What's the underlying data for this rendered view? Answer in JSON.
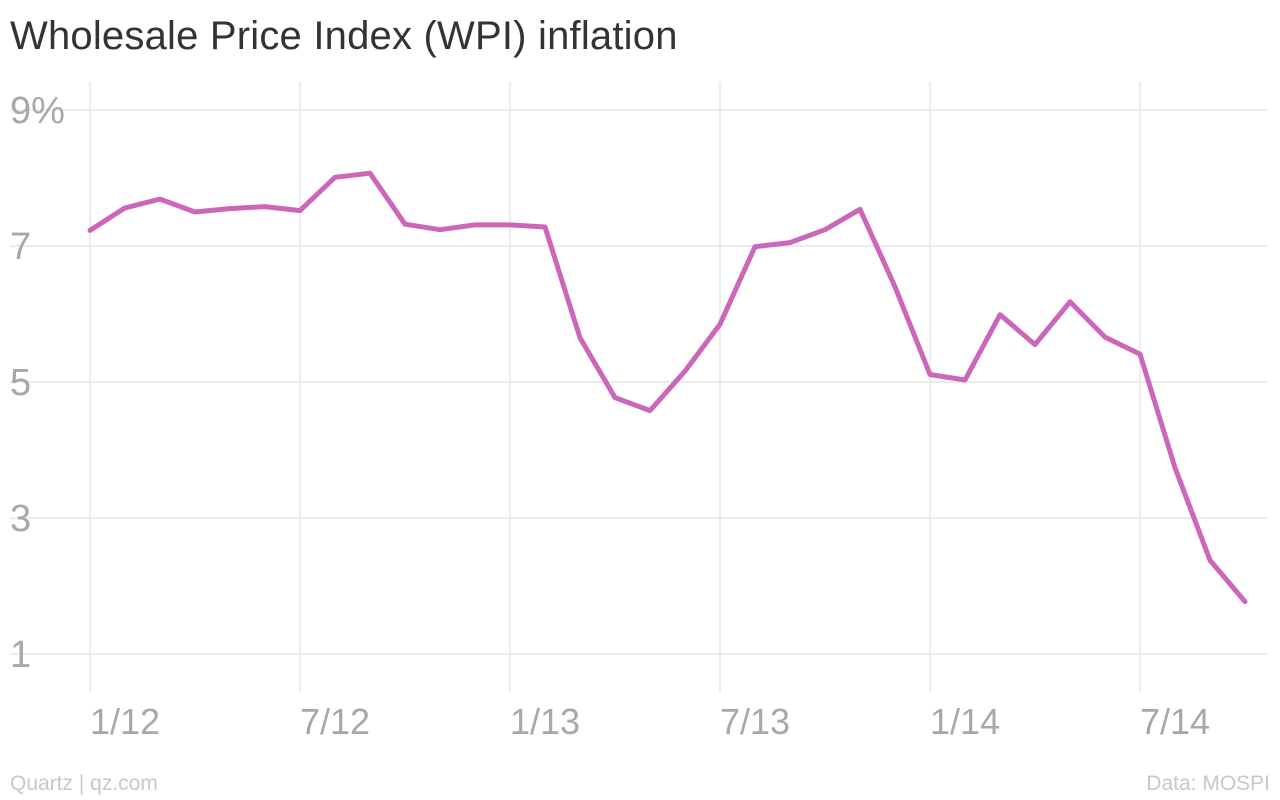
{
  "chart_data": {
    "type": "line",
    "title": "Wholesale Price Index (WPI) inflation",
    "xlabel": "",
    "ylabel": "",
    "ylim": [
      1,
      9
    ],
    "y_ticks": [
      {
        "value": 9,
        "label": "9%"
      },
      {
        "value": 7,
        "label": "7"
      },
      {
        "value": 5,
        "label": "5"
      },
      {
        "value": 3,
        "label": "3"
      },
      {
        "value": 1,
        "label": "1"
      }
    ],
    "x_ticks": [
      {
        "value": "2012-01",
        "label": "1/12"
      },
      {
        "value": "2012-07",
        "label": "7/12"
      },
      {
        "value": "2013-01",
        "label": "1/13"
      },
      {
        "value": "2013-07",
        "label": "7/13"
      },
      {
        "value": "2014-01",
        "label": "1/14"
      },
      {
        "value": "2014-07",
        "label": "7/14"
      }
    ],
    "x": [
      "2012-01",
      "2012-02",
      "2012-03",
      "2012-04",
      "2012-05",
      "2012-06",
      "2012-07",
      "2012-08",
      "2012-09",
      "2012-10",
      "2012-11",
      "2012-12",
      "2013-01",
      "2013-02",
      "2013-03",
      "2013-04",
      "2013-05",
      "2013-06",
      "2013-07",
      "2013-08",
      "2013-09",
      "2013-10",
      "2013-11",
      "2013-12",
      "2014-01",
      "2014-02",
      "2014-03",
      "2014-04",
      "2014-05",
      "2014-06",
      "2014-07",
      "2014-08",
      "2014-09",
      "2014-10"
    ],
    "series": [
      {
        "values": [
          7.23,
          7.56,
          7.69,
          7.5,
          7.55,
          7.58,
          7.52,
          8.01,
          8.07,
          7.32,
          7.24,
          7.31,
          7.31,
          7.28,
          5.65,
          4.77,
          4.58,
          5.16,
          5.85,
          6.99,
          7.05,
          7.24,
          7.54,
          6.4,
          5.11,
          5.03,
          5.99,
          5.55,
          6.18,
          5.66,
          5.41,
          3.74,
          2.38,
          1.77
        ],
        "color": "#cc66bb"
      }
    ],
    "grid": true,
    "legend": "none"
  },
  "footer": {
    "source_left": "Quartz | qz.com",
    "source_right": "Data: MOSPI"
  }
}
